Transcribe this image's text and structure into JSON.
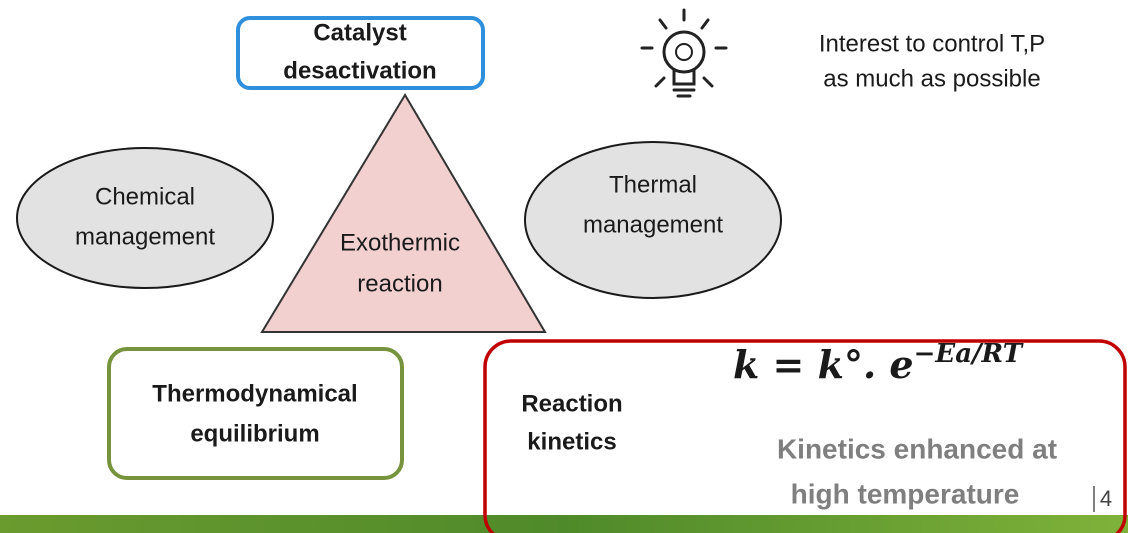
{
  "catalyst": [
    "Catalyst",
    "desactivation"
  ],
  "idea": [
    "Interest to control T,P",
    "as much as possible"
  ],
  "chemical": [
    "Chemical",
    "management"
  ],
  "thermal": [
    "Thermal",
    "management"
  ],
  "reaction": [
    "Exothermic",
    "reaction"
  ],
  "equilibrium": [
    "Thermodynamical",
    "equilibrium"
  ],
  "kinetics": {
    "label": [
      "Reaction",
      "kinetics"
    ],
    "formula_base": "k = k°. e",
    "formula_exponent": "−Ea/RT",
    "note": [
      "Kinetics enhanced at",
      "high temperature"
    ]
  },
  "page_number": "4"
}
